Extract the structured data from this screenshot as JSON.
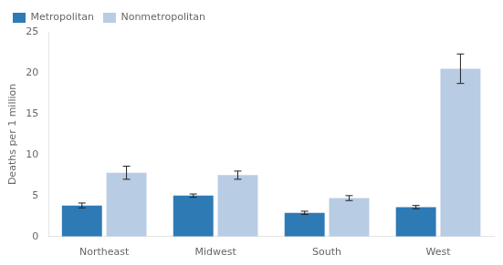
{
  "chart_data": {
    "type": "bar",
    "categories": [
      "Northeast",
      "Midwest",
      "South",
      "West"
    ],
    "series": [
      {
        "name": "Metropolitan",
        "color": "#2e7ab5",
        "values": [
          3.8,
          5.0,
          2.9,
          3.6
        ],
        "errors": [
          0.3,
          0.2,
          0.2,
          0.2
        ]
      },
      {
        "name": "Nonmetropolitan",
        "color": "#b8cce4",
        "values": [
          7.8,
          7.5,
          4.7,
          20.5
        ],
        "errors": [
          0.8,
          0.5,
          0.3,
          1.8
        ]
      }
    ],
    "ylabel": "Deaths per 1 million",
    "ylim": [
      0,
      25
    ],
    "yticks": [
      0,
      5,
      10,
      15,
      20,
      25
    ],
    "grid": false,
    "legend": "upper left"
  }
}
